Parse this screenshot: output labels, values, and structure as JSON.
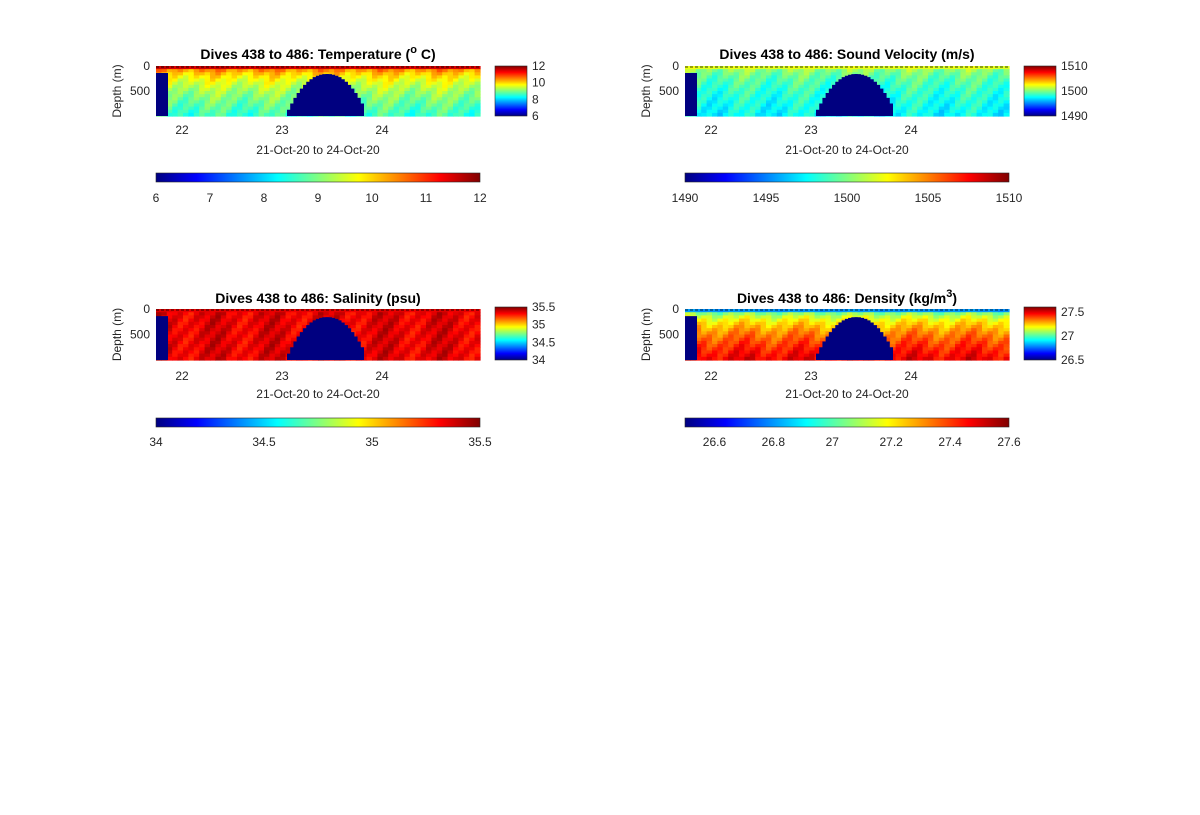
{
  "figure": {
    "background": "#ffffff",
    "colormap": "jet"
  },
  "chart_data": [
    {
      "type": "heatmap",
      "panel": "temperature",
      "title": "Dives 438 to 486: Temperature (",
      "title_super": "o",
      "title_tail": " C)",
      "xlabel": "21-Oct-20 to 24-Oct-20",
      "ylabel": "Depth (m)",
      "x_ticks": [
        "22",
        "23",
        "24"
      ],
      "y_ticks": [
        "0",
        "500"
      ],
      "xlim": [
        21.74,
        24.98
      ],
      "ylim_depth_m": [
        0,
        1000
      ],
      "clim": [
        6,
        12
      ],
      "colorbar_side_ticks": [
        "12",
        "10",
        "8",
        "6"
      ],
      "colorbar_bottom_ticks": [
        "6",
        "7",
        "8",
        "9",
        "10",
        "11",
        "12"
      ],
      "surface_value": 11.5,
      "deep_value": 8.6,
      "no_data_value": 6,
      "no_data_regions": [
        {
          "x_start": 21.74,
          "x_end": 21.86,
          "top_depth_m": 140
        },
        {
          "x_start": 23.05,
          "x_end": 23.82,
          "top_depth_m": 160
        }
      ]
    },
    {
      "type": "heatmap",
      "panel": "sound_velocity",
      "title": "Dives 438 to 486: Sound Velocity (m/s)",
      "xlabel": "21-Oct-20 to 24-Oct-20",
      "ylabel": "Depth (m)",
      "x_ticks": [
        "22",
        "23",
        "24"
      ],
      "y_ticks": [
        "0",
        "500"
      ],
      "xlim": [
        21.74,
        24.98
      ],
      "ylim_depth_m": [
        0,
        1000
      ],
      "clim": [
        1490,
        1510
      ],
      "colorbar_side_ticks": [
        "1510",
        "1500",
        "1490"
      ],
      "colorbar_bottom_ticks": [
        "1490",
        "1495",
        "1500",
        "1505",
        "1510"
      ],
      "surface_value": 1502,
      "deep_value": 1497.5,
      "no_data_value": 1490,
      "no_data_regions": [
        {
          "x_start": 21.74,
          "x_end": 21.86,
          "top_depth_m": 140
        },
        {
          "x_start": 23.05,
          "x_end": 23.82,
          "top_depth_m": 160
        }
      ]
    },
    {
      "type": "heatmap",
      "panel": "salinity",
      "title": "Dives 438 to 486: Salinity (psu)",
      "xlabel": "21-Oct-20 to 24-Oct-20",
      "ylabel": "Depth (m)",
      "x_ticks": [
        "22",
        "23",
        "24"
      ],
      "y_ticks": [
        "0",
        "500"
      ],
      "xlim": [
        21.74,
        24.98
      ],
      "ylim_depth_m": [
        0,
        1000
      ],
      "clim": [
        34,
        35.5
      ],
      "colorbar_side_ticks": [
        "35.5",
        "35",
        "34.5",
        "34"
      ],
      "colorbar_bottom_ticks": [
        "34",
        "34.5",
        "35",
        "35.5"
      ],
      "surface_value": 35.35,
      "deep_value": 35.35,
      "no_data_value": 34,
      "no_data_regions": [
        {
          "x_start": 21.74,
          "x_end": 21.86,
          "top_depth_m": 140
        },
        {
          "x_start": 23.05,
          "x_end": 23.82,
          "top_depth_m": 160
        }
      ]
    },
    {
      "type": "heatmap",
      "panel": "density",
      "title": "Dives 438 to 486: Density (kg/m",
      "title_super": "3",
      "title_tail": ")",
      "xlabel": "21-Oct-20 to 24-Oct-20",
      "ylabel": "Depth (m)",
      "x_ticks": [
        "22",
        "23",
        "24"
      ],
      "y_ticks": [
        "0",
        "500"
      ],
      "xlim": [
        21.74,
        24.98
      ],
      "ylim_depth_m": [
        0,
        1000
      ],
      "clim": [
        26.5,
        27.6
      ],
      "colorbar_side_ticks": [
        "27.5",
        "27",
        "26.5"
      ],
      "colorbar_bottom_ticks": [
        "26.6",
        "26.8",
        "27",
        "27.2",
        "27.4",
        "27.6"
      ],
      "surface_value": 26.8,
      "deep_value": 27.48,
      "no_data_value": 26.5,
      "no_data_regions": [
        {
          "x_start": 21.74,
          "x_end": 21.86,
          "top_depth_m": 140
        },
        {
          "x_start": 23.05,
          "x_end": 23.82,
          "top_depth_m": 160
        }
      ]
    }
  ]
}
